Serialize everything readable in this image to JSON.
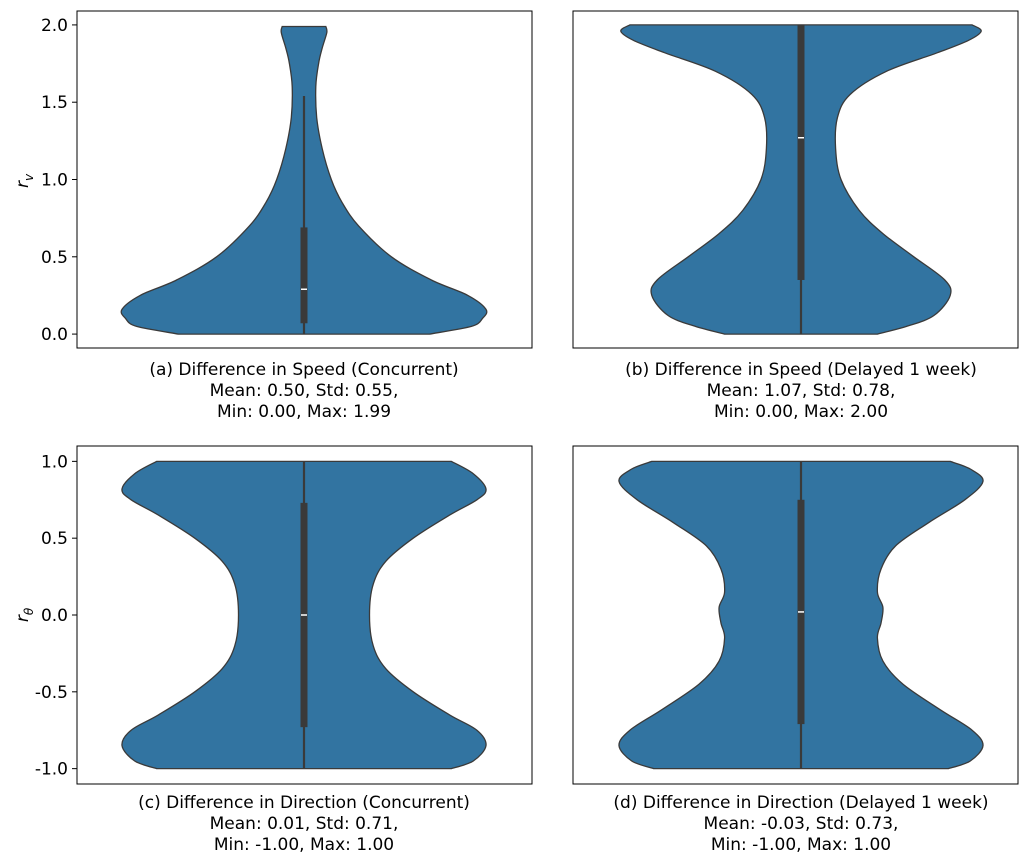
{
  "chart_data": [
    {
      "type": "violin",
      "id": "a",
      "caption": [
        "(a) Difference in Speed (Concurrent)",
        "Mean: 0.50, Std: 0.55,",
        "Min: 0.00, Max: 1.99"
      ],
      "ylabel": "r",
      "ylabel_sub": "v",
      "show_yticks": true,
      "ylim": [
        -0.09,
        2.09
      ],
      "yticks": [
        0.0,
        0.5,
        1.0,
        1.5,
        2.0
      ],
      "ytick_labels": [
        "0.0",
        "0.5",
        "1.0",
        "1.5",
        "2.0"
      ],
      "range": [
        0.0,
        1.99
      ],
      "box": {
        "q1": 0.07,
        "median": 0.29,
        "q3": 0.69,
        "whisker_low": 0.0,
        "whisker_high": 1.54
      },
      "density_profile": [
        {
          "y": 0.0,
          "w": 0.69
        },
        {
          "y": 0.05,
          "w": 0.92
        },
        {
          "y": 0.1,
          "w": 0.98
        },
        {
          "y": 0.16,
          "w": 1.0
        },
        {
          "y": 0.25,
          "w": 0.9
        },
        {
          "y": 0.35,
          "w": 0.7
        },
        {
          "y": 0.5,
          "w": 0.48
        },
        {
          "y": 0.7,
          "w": 0.3
        },
        {
          "y": 0.85,
          "w": 0.21
        },
        {
          "y": 1.0,
          "w": 0.15
        },
        {
          "y": 1.2,
          "w": 0.1
        },
        {
          "y": 1.4,
          "w": 0.07
        },
        {
          "y": 1.6,
          "w": 0.065
        },
        {
          "y": 1.75,
          "w": 0.08
        },
        {
          "y": 1.85,
          "w": 0.1
        },
        {
          "y": 1.95,
          "w": 0.125
        },
        {
          "y": 1.99,
          "w": 0.12
        }
      ]
    },
    {
      "type": "violin",
      "id": "b",
      "caption": [
        "(b) Difference in Speed (Delayed 1 week)",
        "Mean: 1.07, Std: 0.78,",
        "Min: 0.00, Max: 2.00"
      ],
      "ylabel": "",
      "ylabel_sub": "",
      "show_yticks": false,
      "ylim": [
        -0.09,
        2.09
      ],
      "yticks": [],
      "ytick_labels": [],
      "range": [
        0.0,
        2.0
      ],
      "box": {
        "q1": 0.35,
        "median": 1.27,
        "q3": 2.0,
        "whisker_low": 0.0,
        "whisker_high": 2.0
      },
      "density_profile": [
        {
          "y": 0.0,
          "w": 0.42
        },
        {
          "y": 0.05,
          "w": 0.58
        },
        {
          "y": 0.12,
          "w": 0.73
        },
        {
          "y": 0.25,
          "w": 0.82
        },
        {
          "y": 0.35,
          "w": 0.79
        },
        {
          "y": 0.5,
          "w": 0.62
        },
        {
          "y": 0.65,
          "w": 0.45
        },
        {
          "y": 0.8,
          "w": 0.32
        },
        {
          "y": 1.0,
          "w": 0.22
        },
        {
          "y": 1.2,
          "w": 0.19
        },
        {
          "y": 1.4,
          "w": 0.2
        },
        {
          "y": 1.55,
          "w": 0.27
        },
        {
          "y": 1.7,
          "w": 0.47
        },
        {
          "y": 1.82,
          "w": 0.75
        },
        {
          "y": 1.9,
          "w": 0.92
        },
        {
          "y": 1.96,
          "w": 0.99
        },
        {
          "y": 2.0,
          "w": 0.94
        }
      ]
    },
    {
      "type": "violin",
      "id": "c",
      "caption": [
        "(c) Difference in Direction (Concurrent)",
        "Mean: 0.01, Std: 0.71,",
        "Min: -1.00, Max: 1.00"
      ],
      "ylabel": "r",
      "ylabel_sub": "θ",
      "show_yticks": true,
      "ylim": [
        -1.1,
        1.1
      ],
      "yticks": [
        -1.0,
        -0.5,
        0.0,
        0.5,
        1.0
      ],
      "ytick_labels": [
        "-1.0",
        "-0.5",
        "0.0",
        "0.5",
        "1.0"
      ],
      "range": [
        -1.0,
        1.0
      ],
      "box": {
        "q1": -0.73,
        "median": 0.0,
        "q3": 0.73,
        "whisker_low": -1.0,
        "whisker_high": 1.0
      },
      "density_profile": [
        {
          "y": -1.0,
          "w": 0.81
        },
        {
          "y": -0.95,
          "w": 0.93
        },
        {
          "y": -0.85,
          "w": 1.0
        },
        {
          "y": -0.75,
          "w": 0.95
        },
        {
          "y": -0.65,
          "w": 0.8
        },
        {
          "y": -0.5,
          "w": 0.6
        },
        {
          "y": -0.35,
          "w": 0.45
        },
        {
          "y": -0.2,
          "w": 0.38
        },
        {
          "y": 0.0,
          "w": 0.36
        },
        {
          "y": 0.2,
          "w": 0.38
        },
        {
          "y": 0.35,
          "w": 0.45
        },
        {
          "y": 0.5,
          "w": 0.6
        },
        {
          "y": 0.65,
          "w": 0.8
        },
        {
          "y": 0.75,
          "w": 0.95
        },
        {
          "y": 0.82,
          "w": 1.0
        },
        {
          "y": 0.92,
          "w": 0.93
        },
        {
          "y": 1.0,
          "w": 0.81
        }
      ]
    },
    {
      "type": "violin",
      "id": "d",
      "caption": [
        "(d) Difference in Direction (Delayed 1 week)",
        "Mean: -0.03, Std: 0.73,",
        "Min: -1.00, Max: 1.00"
      ],
      "ylabel": "",
      "ylabel_sub": "",
      "show_yticks": false,
      "ylim": [
        -1.1,
        1.1
      ],
      "yticks": [],
      "ytick_labels": [],
      "range": [
        -1.0,
        1.0
      ],
      "box": {
        "q1": -0.71,
        "median": 0.02,
        "q3": 0.75,
        "whisker_low": -1.0,
        "whisker_high": 1.0
      },
      "density_profile": [
        {
          "y": -1.0,
          "w": 0.81
        },
        {
          "y": -0.95,
          "w": 0.93
        },
        {
          "y": -0.85,
          "w": 1.0
        },
        {
          "y": -0.75,
          "w": 0.94
        },
        {
          "y": -0.62,
          "w": 0.77
        },
        {
          "y": -0.45,
          "w": 0.56
        },
        {
          "y": -0.3,
          "w": 0.45
        },
        {
          "y": -0.15,
          "w": 0.42
        },
        {
          "y": -0.05,
          "w": 0.44
        },
        {
          "y": 0.05,
          "w": 0.45
        },
        {
          "y": 0.15,
          "w": 0.42
        },
        {
          "y": 0.3,
          "w": 0.44
        },
        {
          "y": 0.45,
          "w": 0.52
        },
        {
          "y": 0.6,
          "w": 0.7
        },
        {
          "y": 0.75,
          "w": 0.9
        },
        {
          "y": 0.87,
          "w": 1.0
        },
        {
          "y": 0.95,
          "w": 0.93
        },
        {
          "y": 1.0,
          "w": 0.82
        }
      ]
    }
  ],
  "colors": {
    "violin_fill": "#3274a1",
    "violin_edge": "#3a3a3a",
    "box": "#3a3a3a",
    "median": "#ffffff",
    "axes": "#000000"
  }
}
